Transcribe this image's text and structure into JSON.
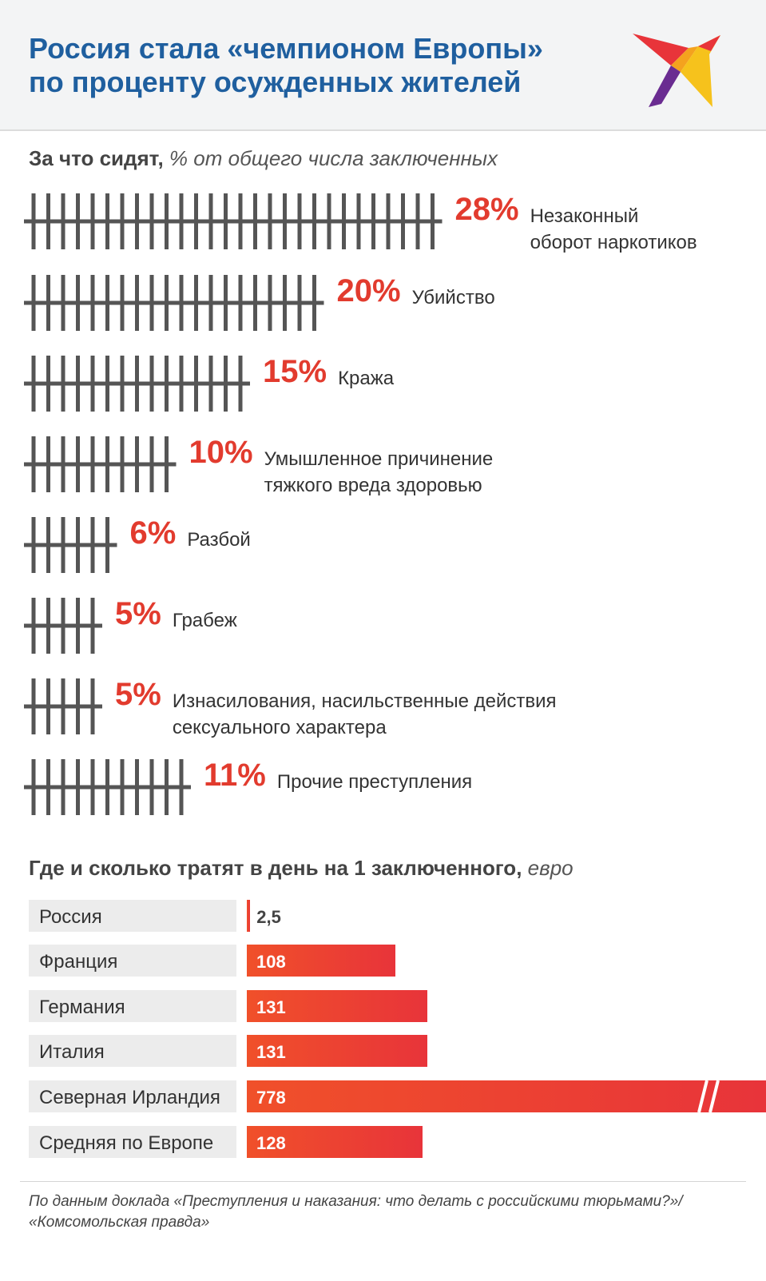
{
  "title": {
    "line1": "Россия стала «чемпионом Европы»",
    "line2": "по проценту осужденных жителей"
  },
  "logo": {
    "icon": "bird-logo-icon",
    "colors": [
      "#e8343a",
      "#f4a21e",
      "#6a2c91",
      "#f6c21c"
    ]
  },
  "colors": {
    "accent_red": "#e23b2e",
    "title_blue": "#1f5f9f",
    "tally_gray": "#555555",
    "bar_gradient": [
      "#f0502a",
      "#e8343a"
    ]
  },
  "section1": {
    "heading_bold": "За что сидят,",
    "heading_italic": "% от общего числа заключенных"
  },
  "section2": {
    "heading_bold": "Где и сколько тратят в день на 1 заключенного,",
    "heading_italic": "евро"
  },
  "chart_data": [
    {
      "type": "bar",
      "categories": [
        "Незаконный\nоборот наркотиков",
        "Убийство",
        "Кража",
        "Умышленное причинение\nтяжкого вреда здоровью",
        "Разбой",
        "Грабеж",
        "Изнасилования, насильственные действия\nсексуального характера",
        "Прочие преступления"
      ],
      "values": [
        28,
        20,
        15,
        10,
        6,
        5,
        5,
        11
      ],
      "value_labels": [
        "28%",
        "20%",
        "15%",
        "10%",
        "6%",
        "5%",
        "5%",
        "11%"
      ],
      "title": "За что сидят, % от общего числа заключенных"
    },
    {
      "type": "bar",
      "categories": [
        "Россия",
        "Франция",
        "Германия",
        "Италия",
        "Северная Ирландия",
        "Средняя по Европе"
      ],
      "values": [
        2.5,
        108,
        131,
        131,
        778,
        128
      ],
      "value_labels": [
        "2,5",
        "108",
        "131",
        "131",
        "778",
        "128"
      ],
      "title": "Где и сколько тратят в день на 1 заключенного, евро",
      "axis_break": "Северная Ирландия"
    }
  ],
  "source": "По данным доклада «Преступления и наказания: что делать с российскими тюрьмами?»/\n«Комсомольская правда»"
}
